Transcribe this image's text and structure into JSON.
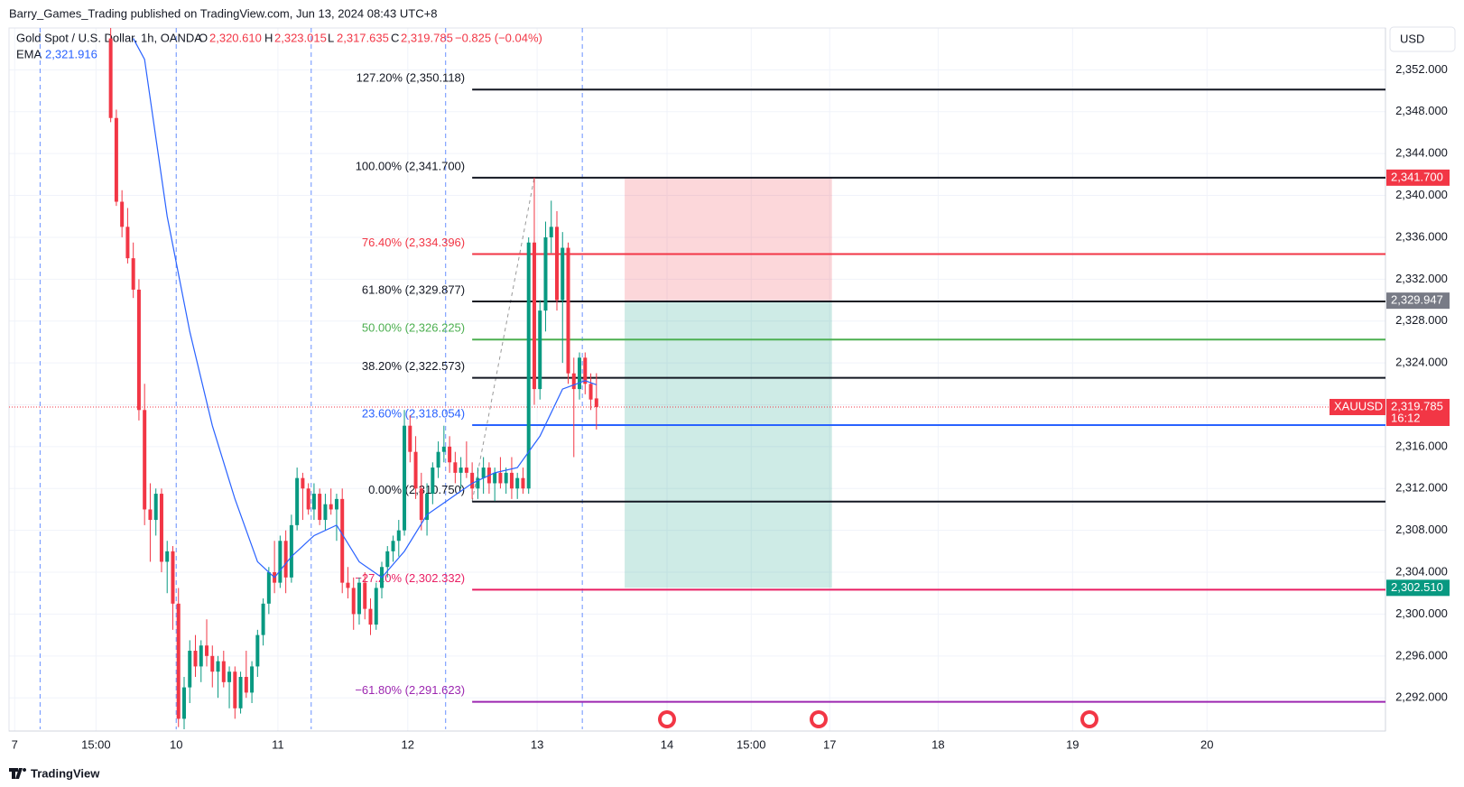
{
  "header": "Barry_Games_Trading published on TradingView.com, Jun 13, 2024 08:43 UTC+8",
  "footer": "TradingView",
  "currency": "USD",
  "legend": {
    "name": "Gold Spot / U.S. Dollar, 1h, OANDA",
    "o_label": "O",
    "o": "2,320.610",
    "h_label": "H",
    "h": "2,323.015",
    "l_label": "L",
    "l": "2,317.635",
    "c_label": "C",
    "c": "2,319.785",
    "change": "−0.825 (−0.04%)",
    "ema_label": "EMA",
    "ema": "2,321.916"
  },
  "chart_data": {
    "type": "candlestick",
    "xlim": [
      0,
      243.7
    ],
    "ylim": [
      2289,
      2356
    ],
    "grid": true,
    "xticks": [
      {
        "value": 1,
        "label": "7"
      },
      {
        "value": 15.4,
        "label": "15:00"
      },
      {
        "value": 29.6,
        "label": "10"
      },
      {
        "value": 47.6,
        "label": "11"
      },
      {
        "value": 70.6,
        "label": "12"
      },
      {
        "value": 93.5,
        "label": "13"
      },
      {
        "value": 116.5,
        "label": "14"
      },
      {
        "value": 131.4,
        "label": "15:00"
      },
      {
        "value": 145.3,
        "label": "17"
      },
      {
        "value": 164.5,
        "label": "18"
      },
      {
        "value": 188.3,
        "label": "19"
      },
      {
        "value": 212.1,
        "label": "20"
      }
    ],
    "yticks": [
      {
        "value": 2292,
        "label": "2,292.000"
      },
      {
        "value": 2296,
        "label": "2,296.000"
      },
      {
        "value": 2300,
        "label": "2,300.000"
      },
      {
        "value": 2304,
        "label": "2,304.000"
      },
      {
        "value": 2308,
        "label": "2,308.000"
      },
      {
        "value": 2312,
        "label": "2,312.000"
      },
      {
        "value": 2316,
        "label": "2,316.000"
      },
      {
        "value": 2320,
        "label": "2,320.000"
      },
      {
        "value": 2324,
        "label": "2,324.000"
      },
      {
        "value": 2328,
        "label": "2,328.000"
      },
      {
        "value": 2332,
        "label": "2,332.000"
      },
      {
        "value": 2336,
        "label": "2,336.000"
      },
      {
        "value": 2340,
        "label": "2,340.000"
      },
      {
        "value": 2344,
        "label": "2,344.000"
      },
      {
        "value": 2348,
        "label": "2,348.000"
      },
      {
        "value": 2352,
        "label": "2,352.000"
      }
    ],
    "up_color": "#089981",
    "down_color": "#f23645",
    "candles": {
      "x": [
        18,
        19,
        20,
        21,
        22,
        23,
        24,
        25,
        26,
        27,
        28,
        29,
        30,
        31,
        32,
        33,
        34,
        35,
        36,
        37,
        38,
        39,
        40,
        41,
        42,
        43,
        44,
        45,
        46,
        47,
        48,
        49,
        50,
        51,
        52,
        53,
        54,
        55,
        56,
        57,
        58,
        59,
        60,
        61,
        62,
        63,
        64,
        65,
        66,
        67,
        68,
        69,
        70,
        71,
        72,
        73,
        74,
        75,
        76,
        77,
        78,
        79,
        80,
        81,
        82,
        83,
        84,
        85,
        86,
        87,
        88,
        89,
        90,
        91,
        92,
        93,
        94,
        95,
        96,
        97,
        98,
        99,
        100,
        101,
        102,
        103,
        104
      ],
      "open": [
        2355.0,
        2347.4,
        2339.4,
        2337.0,
        2334.0,
        2331.0,
        2319.5,
        2310.0,
        2309.0,
        2311.5,
        2305.0,
        2306.0,
        2301.0,
        2290.0,
        2293.0,
        2296.5,
        2295.0,
        2297.0,
        2296.0,
        2294.5,
        2295.5,
        2293.5,
        2294.5,
        2291.0,
        2294.0,
        2292.5,
        2295.0,
        2298.0,
        2301.0,
        2304.0,
        2303.0,
        2307.0,
        2303.5,
        2308.5,
        2313.0,
        2312.0,
        2310.0,
        2311.5,
        2309.0,
        2310.5,
        2310.0,
        2311.0,
        2303.0,
        2302.5,
        2300.0,
        2303.0,
        2300.5,
        2299.0,
        2302.5,
        2304.5,
        2306.0,
        2307.0,
        2308.0,
        2318.0,
        2315.5,
        2312.0,
        2309.0,
        2311.5,
        2314.0,
        2315.5,
        2316.0,
        2314.5,
        2313.5,
        2314.0,
        2313.5,
        2312.0,
        2313.0,
        2314.0,
        2312.5,
        2313.5,
        2312.5,
        2313.5,
        2312.0,
        2313.0,
        2312.0,
        2335.5,
        2321.5,
        2329.0,
        2336.0,
        2337.0,
        2330.0,
        2335.0,
        2323.0,
        2321.5,
        2324.5,
        2322.0,
        2320.61
      ],
      "high": [
        2356.0,
        2348.2,
        2340.5,
        2338.8,
        2335.5,
        2332.0,
        2322.0,
        2312.5,
        2312.0,
        2312.0,
        2307.0,
        2306.5,
        2302.5,
        2294.0,
        2297.5,
        2298.0,
        2297.5,
        2299.5,
        2297.0,
        2296.0,
        2296.5,
        2295.0,
        2295.0,
        2294.5,
        2296.5,
        2295.5,
        2298.5,
        2301.5,
        2304.5,
        2307.0,
        2307.5,
        2308.0,
        2309.5,
        2314.0,
        2313.5,
        2312.5,
        2312.5,
        2312.0,
        2311.5,
        2312.0,
        2311.5,
        2312.0,
        2304.5,
        2303.5,
        2303.5,
        2304.0,
        2301.5,
        2303.0,
        2305.0,
        2306.5,
        2307.5,
        2309.0,
        2319.5,
        2319.0,
        2317.0,
        2313.5,
        2312.5,
        2314.5,
        2316.5,
        2318.0,
        2317.0,
        2315.5,
        2315.0,
        2316.5,
        2314.5,
        2314.0,
        2315.0,
        2314.5,
        2314.0,
        2315.0,
        2314.0,
        2315.0,
        2313.5,
        2314.0,
        2336.0,
        2341.7,
        2330.0,
        2337.5,
        2339.5,
        2338.5,
        2336.5,
        2335.5,
        2324.5,
        2325.0,
        2325.0,
        2323.0,
        2323.015
      ],
      "low": [
        2347.0,
        2339.0,
        2336.0,
        2333.5,
        2330.2,
        2318.5,
        2308.5,
        2305.0,
        2307.5,
        2304.0,
        2302.0,
        2298.5,
        2289.2,
        2289.0,
        2291.5,
        2294.0,
        2293.5,
        2295.0,
        2293.0,
        2292.0,
        2293.0,
        2291.0,
        2290.0,
        2290.5,
        2292.0,
        2291.5,
        2294.0,
        2297.0,
        2300.0,
        2302.0,
        2302.5,
        2302.0,
        2303.0,
        2308.0,
        2309.0,
        2309.5,
        2309.0,
        2308.5,
        2308.0,
        2309.5,
        2307.0,
        2302.0,
        2301.5,
        2298.5,
        2299.0,
        2299.5,
        2298.0,
        2298.5,
        2301.5,
        2303.5,
        2305.0,
        2305.5,
        2307.5,
        2314.5,
        2311.0,
        2308.0,
        2307.5,
        2310.5,
        2313.0,
        2314.5,
        2313.5,
        2312.5,
        2312.0,
        2313.0,
        2311.0,
        2311.0,
        2311.5,
        2311.5,
        2310.8,
        2312.0,
        2311.5,
        2311.0,
        2311.0,
        2311.5,
        2311.5,
        2320.0,
        2320.5,
        2327.0,
        2334.5,
        2329.0,
        2324.0,
        2322.0,
        2315.0,
        2320.5,
        2321.0,
        2319.5,
        2317.635
      ],
      "close": [
        2347.4,
        2339.4,
        2337.0,
        2334.0,
        2331.0,
        2319.5,
        2310.0,
        2309.0,
        2311.5,
        2305.0,
        2306.0,
        2301.0,
        2290.0,
        2293.0,
        2296.5,
        2295.0,
        2297.0,
        2296.0,
        2294.5,
        2295.5,
        2293.5,
        2294.5,
        2291.0,
        2294.0,
        2292.5,
        2295.0,
        2298.0,
        2301.0,
        2304.0,
        2303.0,
        2307.0,
        2303.5,
        2308.5,
        2313.0,
        2312.0,
        2310.0,
        2311.5,
        2309.0,
        2310.5,
        2310.0,
        2311.0,
        2303.0,
        2302.5,
        2300.0,
        2303.0,
        2300.5,
        2299.0,
        2302.5,
        2304.5,
        2306.0,
        2307.0,
        2308.0,
        2318.0,
        2315.5,
        2312.0,
        2309.0,
        2311.5,
        2314.0,
        2315.5,
        2316.0,
        2314.5,
        2313.5,
        2314.0,
        2313.5,
        2312.0,
        2313.0,
        2314.0,
        2312.5,
        2313.5,
        2312.5,
        2313.5,
        2312.0,
        2313.0,
        2312.0,
        2335.5,
        2321.5,
        2329.0,
        2336.0,
        2337.0,
        2330.0,
        2335.0,
        2323.0,
        2321.5,
        2324.5,
        2322.0,
        2320.5,
        2319.785
      ]
    },
    "ema": {
      "color": "#2962ff",
      "x": [
        22,
        24,
        28,
        32,
        36,
        40,
        44,
        47,
        50,
        54,
        58,
        62,
        66,
        70,
        74,
        78,
        82,
        86,
        90,
        94,
        98,
        102,
        104
      ],
      "values": [
        2355,
        2353,
        2338,
        2327,
        2318,
        2311,
        2305,
        2303.5,
        2305.5,
        2307.5,
        2308.5,
        2305,
        2303.5,
        2306,
        2309.5,
        2311,
        2312.5,
        2313.5,
        2314,
        2317,
        2321.5,
        2322.3,
        2321.916
      ]
    },
    "session_breaks": [
      5.5,
      29.6,
      53.5,
      77.3,
      101.5
    ],
    "fib": {
      "x": [
        82,
        93
      ],
      "levels": [
        {
          "label": "127.20% (2,350.118)",
          "value": 2350.118,
          "color": "#131722"
        },
        {
          "label": "100.00% (2,341.700)",
          "value": 2341.7,
          "color": "#131722"
        },
        {
          "label": "76.40% (2,334.396)",
          "value": 2334.396,
          "color": "#f23645"
        },
        {
          "label": "61.80% (2,329.877)",
          "value": 2329.877,
          "color": "#131722"
        },
        {
          "label": "50.00% (2,326.225)",
          "value": 2326.225,
          "color": "#4caf50"
        },
        {
          "label": "38.20% (2,322.573)",
          "value": 2322.573,
          "color": "#131722"
        },
        {
          "label": "23.60% (2,318.054)",
          "value": 2318.054,
          "color": "#2962ff"
        },
        {
          "label": "0.00% (2,310.750)",
          "value": 2310.75,
          "color": "#131722"
        },
        {
          "label": "−27.20% (2,302.332)",
          "value": 2302.332,
          "color": "#e91e63"
        },
        {
          "label": "−61.80% (2,291.623)",
          "value": 2291.623,
          "color": "#9c27b0"
        }
      ]
    },
    "position": {
      "x": [
        109,
        145.7
      ],
      "stop": 2341.7,
      "entry": 2329.947,
      "target": 2302.51
    },
    "price_labels": [
      {
        "label": "2,341.700",
        "value": 2341.7,
        "color": "#f23645"
      },
      {
        "label": "2,329.947",
        "value": 2329.947,
        "color": "#787b86"
      },
      {
        "label": "2,319.785",
        "value": 2319.785,
        "color": "#f23645",
        "sub": "16:12",
        "tag": "XAUUSD"
      },
      {
        "label": "2,302.510",
        "value": 2302.51,
        "color": "#089981"
      }
    ]
  }
}
